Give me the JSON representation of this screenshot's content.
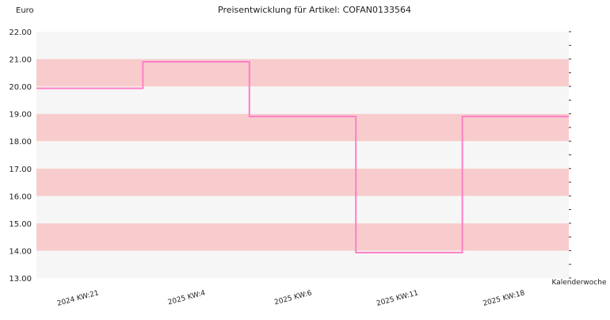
{
  "chart_data": {
    "type": "line",
    "step": true,
    "title": "Preisentwicklung für Artikel: COFAN0133564",
    "ylabel": "Euro",
    "xlabel": "Kalenderwoche",
    "ylim": [
      13.0,
      22.0
    ],
    "yticks": [
      "13.00",
      "14.00",
      "15.00",
      "16.00",
      "17.00",
      "18.00",
      "19.00",
      "20.00",
      "21.00",
      "22.00"
    ],
    "categories": [
      "2024 KW:21",
      "2025 KW:4",
      "2025 KW:6",
      "2025 KW:11",
      "2025 KW:18"
    ],
    "series": [
      {
        "values": [
          19.93,
          20.9,
          18.9,
          13.93,
          18.9
        ]
      }
    ],
    "grid": true,
    "band_color": "#f8cccc",
    "alt_band_color": "#f6f6f6",
    "line_color": "#ff7fc6"
  }
}
